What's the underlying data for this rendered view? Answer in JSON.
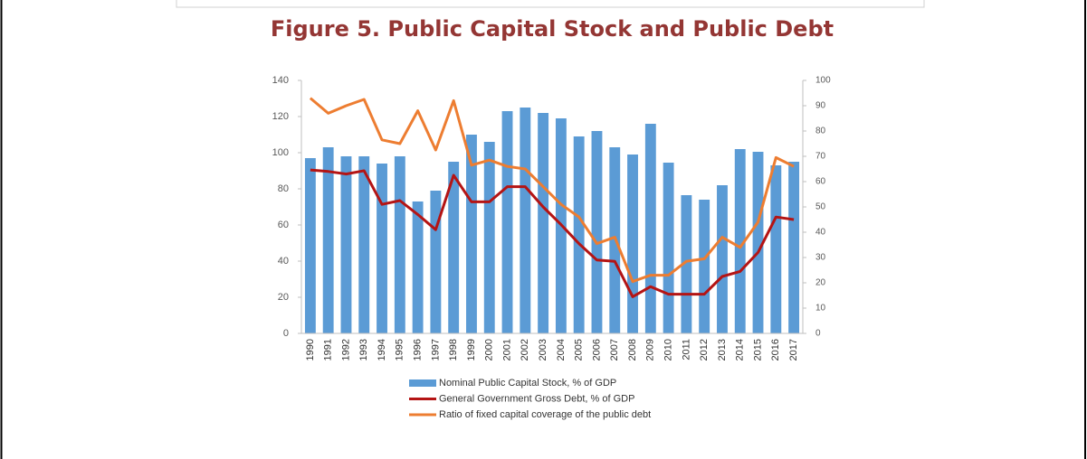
{
  "chart_data": {
    "type": "bar",
    "title": "Figure 5. Public Capital Stock and Public Debt",
    "categories": [
      "1990",
      "1991",
      "1992",
      "1993",
      "1994",
      "1995",
      "1996",
      "1997",
      "1998",
      "1999",
      "2000",
      "2001",
      "2002",
      "2003",
      "2004",
      "2005",
      "2006",
      "2007",
      "2008",
      "2009",
      "2010",
      "2011",
      "2012",
      "2013",
      "2014",
      "2015",
      "2016",
      "2017"
    ],
    "series": [
      {
        "name": "Nominal Public Capital Stock, % of GDP",
        "type": "bar",
        "color": "#5b9bd5",
        "values": [
          97,
          103,
          98,
          98,
          94,
          98,
          73,
          79,
          95,
          110,
          106,
          123,
          125,
          122,
          119,
          109,
          112,
          103,
          99,
          116,
          94.5,
          76.5,
          74,
          82,
          102,
          100.5,
          93,
          95
        ]
      },
      {
        "name": "General Government Gross Debt, % of GDP",
        "type": "line",
        "axis": "y2",
        "color": "#b41414",
        "values": [
          64.6,
          64,
          63,
          64.3,
          51,
          52.5,
          47,
          41,
          62.5,
          52,
          52,
          58,
          58,
          50,
          43,
          35.5,
          29,
          28.5,
          14.5,
          18.5,
          15.5,
          15.5,
          15.5,
          22.5,
          24.5,
          32,
          46,
          45
        ]
      },
      {
        "name": "Ratio of fixed capital coverage of the public debt",
        "type": "line",
        "axis": "y2",
        "color": "#ed7d31",
        "values": [
          93,
          87,
          90,
          92.5,
          76.5,
          75,
          88,
          72.5,
          92,
          66.5,
          68.5,
          66,
          65,
          58,
          51,
          46,
          35.5,
          38,
          20.5,
          23,
          23,
          28.5,
          29.5,
          38,
          34,
          44,
          69.5,
          66
        ]
      }
    ],
    "ylim": [
      0,
      140
    ],
    "yticks": [
      0,
      20,
      40,
      60,
      80,
      100,
      120,
      140
    ],
    "y2lim": [
      0,
      100
    ],
    "y2ticks": [
      0,
      10,
      20,
      30,
      40,
      50,
      60,
      70,
      80,
      90,
      100
    ],
    "grid": false
  }
}
